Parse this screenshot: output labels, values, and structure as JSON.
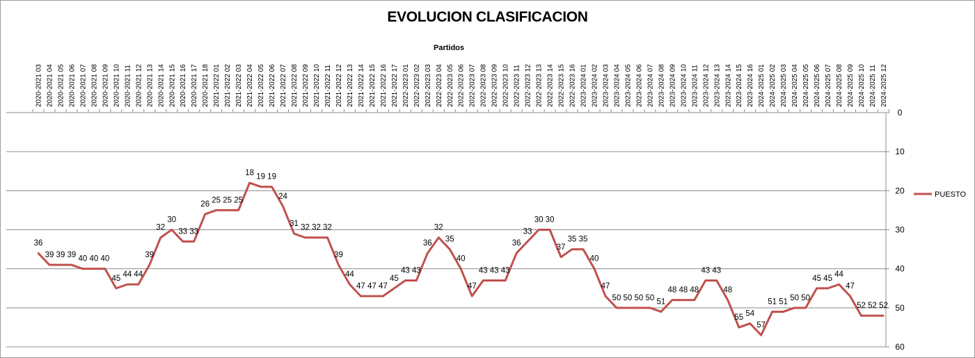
{
  "chart_data": {
    "type": "line",
    "title": "EVOLUCION CLASIFICACION",
    "xlabel": "Partidos",
    "ylabel": "",
    "ylim": [
      0,
      60
    ],
    "y_reversed": true,
    "y_ticks": [
      0,
      10,
      20,
      30,
      40,
      50,
      60
    ],
    "y_axis_position": "right",
    "x_axis_position": "top",
    "grid": true,
    "legend_position": "right",
    "line_color": "#c0504d",
    "categories": [
      "2020-2021 03",
      "2020-2021 04",
      "2020-2021 05",
      "2020-2021 06",
      "2020-2021 07",
      "2020-2021 08",
      "2020-2021 09",
      "2020-2021 10",
      "2020-2021 11",
      "2020-2021 12",
      "2020-2021 13",
      "2020-2021 14",
      "2020-2021 15",
      "2020-2021 16",
      "2020-2021 17",
      "2020-2021 18",
      "2021-2022 01",
      "2021-2022 02",
      "2021-2022 03",
      "2021-2022 04",
      "2021-2022 05",
      "2021-2022 06",
      "2021-2022 07",
      "2021-2022 08",
      "2021-2022 09",
      "2021-2022 10",
      "2021-2022 11",
      "2021-2022 12",
      "2021-2022 13",
      "2021-2022 14",
      "2021-2022 15",
      "2021-2022 16",
      "2021-2022 17",
      "2022-2023 01",
      "2022-2023 02",
      "2022-2023 03",
      "2022-2023 04",
      "2022-2023 05",
      "2022-2023 06",
      "2022-2023 07",
      "2022-2023 08",
      "2022-2023 09",
      "2022-2023 10",
      "2022-2023 11",
      "2022-2023 12",
      "2022-2023 13",
      "2022-2023 14",
      "2022-2023 15",
      "2022-2023 16",
      "2023-2024 01",
      "2023-2024 02",
      "2023-2024 03",
      "2023-2024 04",
      "2023-2024 05",
      "2023-2024 06",
      "2023-2024 07",
      "2023-2024 08",
      "2023-2024 09",
      "2023-2024 10",
      "2023-2024 11",
      "2023-2024 12",
      "2023-2024 13",
      "2023-2024 14",
      "2023-2024 15",
      "2023-2024 16",
      "2024-2025 01",
      "2024-2025 02",
      "2024-2025 03",
      "2024-2025 04",
      "2024-2025 05",
      "2024-2025 06",
      "2024-2025 07",
      "2024-2025 08",
      "2024-2025 09",
      "2024-2025 10",
      "2024-2025 11",
      "2024-2025 12"
    ],
    "series": [
      {
        "name": "PUESTO",
        "values": [
          36,
          39,
          39,
          39,
          40,
          40,
          40,
          45,
          44,
          44,
          39,
          32,
          30,
          33,
          33,
          26,
          25,
          25,
          25,
          18,
          19,
          19,
          24,
          31,
          32,
          32,
          32,
          39,
          44,
          47,
          47,
          47,
          45,
          43,
          43,
          36,
          32,
          35,
          40,
          47,
          43,
          43,
          43,
          36,
          33,
          30,
          30,
          37,
          35,
          35,
          40,
          47,
          50,
          50,
          50,
          50,
          51,
          48,
          48,
          48,
          43,
          43,
          48,
          55,
          54,
          57,
          51,
          51,
          50,
          50,
          45,
          45,
          44,
          47,
          52,
          52,
          52
        ]
      }
    ]
  }
}
